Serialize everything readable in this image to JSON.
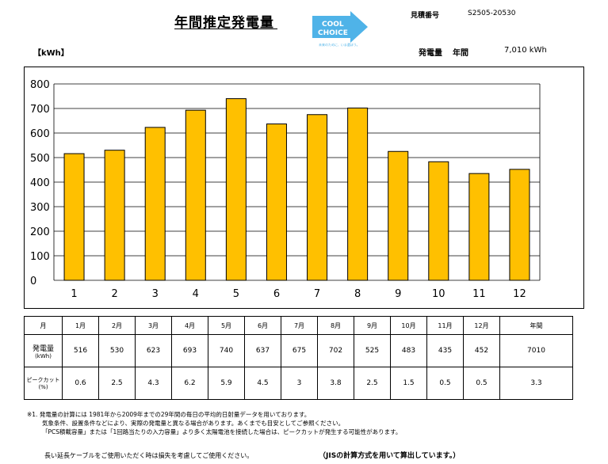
{
  "header": {
    "title": "年間推定発電量",
    "estimate_label": "見積番号",
    "estimate_number": "S2505-20530",
    "logo_line1": "COOL",
    "logo_line2": "CHOICE",
    "logo_tagline": "未来のために、いま選ぼう。",
    "unit_label": "【kWh】",
    "generation_label": "発電量",
    "generation_period": "年間",
    "generation_value": "7,010 kWh"
  },
  "colors": {
    "bar": "#ffc000",
    "bar_stroke": "#000000",
    "logo": "#4fb3e8",
    "grid": "#000000"
  },
  "chart_data": {
    "type": "bar",
    "categories": [
      "1",
      "2",
      "3",
      "4",
      "5",
      "6",
      "7",
      "8",
      "9",
      "10",
      "11",
      "12"
    ],
    "values": [
      516,
      530,
      623,
      693,
      740,
      637,
      675,
      702,
      525,
      483,
      435,
      452
    ],
    "y_ticks": [
      "0",
      "100",
      "200",
      "300",
      "400",
      "500",
      "600",
      "700",
      "800"
    ],
    "ylim": [
      0,
      800
    ],
    "grid": true,
    "legend": "none"
  },
  "table": {
    "header_label": "月",
    "months": [
      "1月",
      "2月",
      "3月",
      "4月",
      "5月",
      "6月",
      "7月",
      "8月",
      "9月",
      "10月",
      "11月",
      "12月"
    ],
    "annual_label": "年間",
    "generation_row_label": "発電量",
    "generation_row_unit": "(kWh)",
    "generation_values": [
      "516",
      "530",
      "623",
      "693",
      "740",
      "637",
      "675",
      "702",
      "525",
      "483",
      "435",
      "452"
    ],
    "generation_annual": "7010",
    "peak_row_label": "ピークカット",
    "peak_row_unit": "(%)",
    "peak_values": [
      "0.6",
      "2.5",
      "4.3",
      "6.2",
      "5.9",
      "4.5",
      "3",
      "3.8",
      "2.5",
      "1.5",
      "0.5",
      "0.5"
    ],
    "peak_annual": "3.3"
  },
  "notes": {
    "line1": "※1. 発電量の計算には 1981年から2009年までの29年間の毎日の平均的日射量データを用いております。",
    "line2": "気象条件、設置条件などにより、実際の発電量と異なる場合があります。あくまでも目安としてご参照ください。",
    "line3": "「PCS積載容量」または「1回路当たりの入力容量」より多く太陽電池を接続した場合は、ピークカットが発生する可能性があります。"
  },
  "footer": {
    "left": "長い延長ケーブルをご使用いただく時は損失を考慮してご使用ください。",
    "right": "（JISの計算方式を用いて算出しています。）"
  }
}
